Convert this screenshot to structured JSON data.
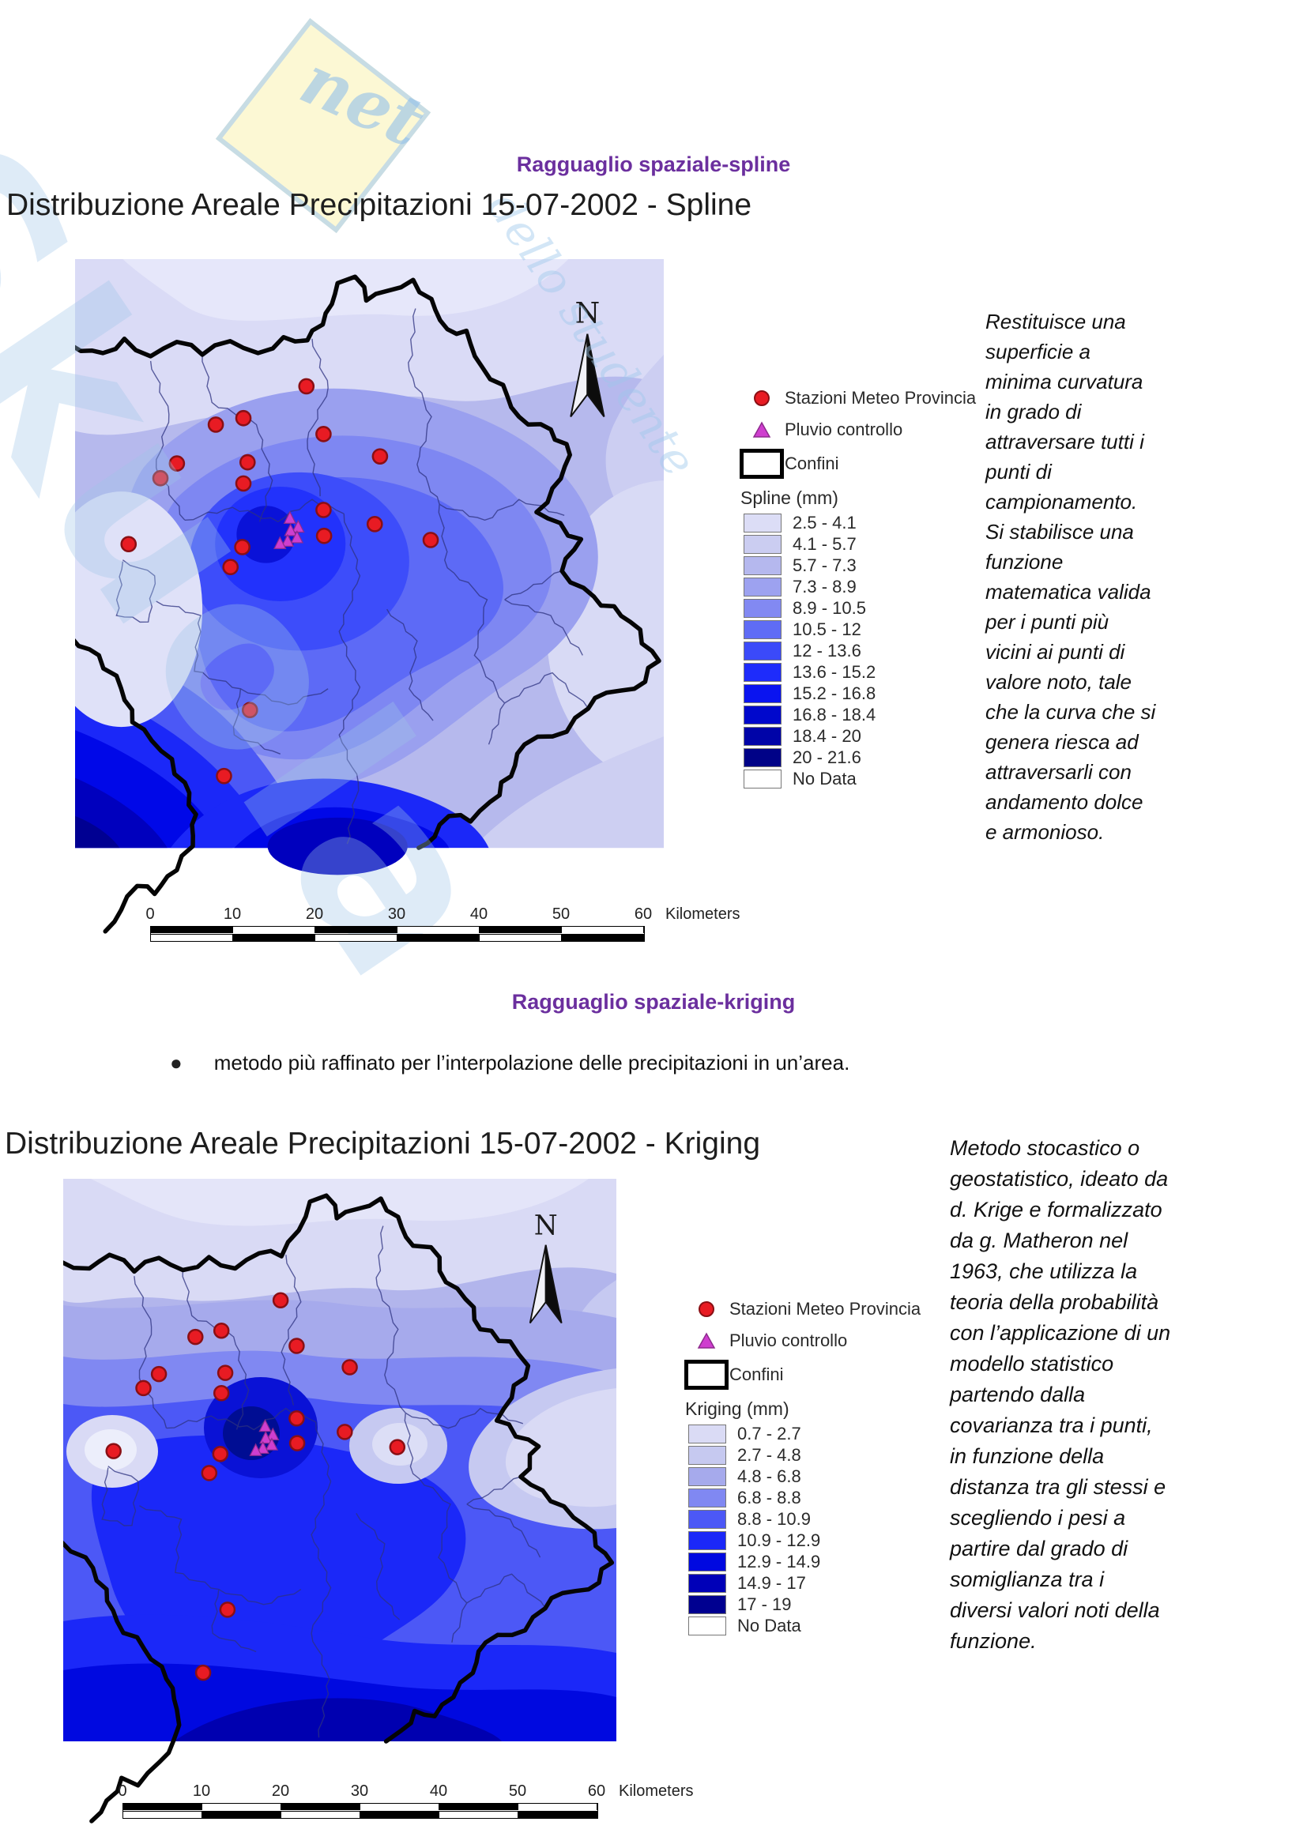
{
  "page": {
    "title_spline": "Ragguaglio spaziale-spline",
    "title_kriging": "Ragguaglio spaziale-kriging",
    "kriging_bullet": "metodo più raffinato per l’interpolazione delle precipitazioni in un’area.",
    "accent_purple": "#6b2f9e"
  },
  "watermark": {
    "brand": "Skuola",
    "net": "net",
    "tagline": "dello studente"
  },
  "colors": {
    "station_red": "#e81b23",
    "station_red_edge": "#8a0f14",
    "pluvio_magenta": "#cf3ecf",
    "pluvio_magenta_edge": "#8d2a8d"
  },
  "map_points": {
    "stations": [
      [
        39.3,
        21.6
      ],
      [
        28.6,
        27.0
      ],
      [
        23.9,
        28.1
      ],
      [
        42.2,
        29.7
      ],
      [
        51.8,
        33.5
      ],
      [
        17.3,
        34.7
      ],
      [
        29.3,
        34.5
      ],
      [
        14.5,
        37.2
      ],
      [
        28.6,
        38.1
      ],
      [
        42.2,
        42.6
      ],
      [
        50.9,
        45.0
      ],
      [
        42.3,
        47.0
      ],
      [
        60.4,
        47.7
      ],
      [
        9.1,
        48.4
      ],
      [
        28.4,
        48.9
      ],
      [
        26.4,
        52.3
      ],
      [
        29.7,
        76.6
      ],
      [
        25.3,
        87.8
      ]
    ],
    "pluvio": [
      [
        36.5,
        44.0
      ],
      [
        37.9,
        45.5
      ],
      [
        36.6,
        46.1
      ],
      [
        37.7,
        47.3
      ],
      [
        36.1,
        47.9
      ],
      [
        34.8,
        48.3
      ]
    ]
  },
  "spline_figure": {
    "map_title": "Distribuzione Areale Precipitazioni 15-07-2002  -  Spline",
    "north_label": "N",
    "legend": {
      "station_label": "Stazioni Meteo Provincia",
      "pluvio_label": "Pluvio controllo",
      "confini_label": "Confini",
      "ramp_title": "Spline (mm)",
      "classes": [
        {
          "label": "2.5 - 4.1",
          "color": "#dcddf6"
        },
        {
          "label": "4.1 - 5.7",
          "color": "#cbcdf1"
        },
        {
          "label": "5.7 - 7.3",
          "color": "#b5b8ee"
        },
        {
          "label": "7.3 - 8.9",
          "color": "#9da2f0"
        },
        {
          "label": "8.9 - 10.5",
          "color": "#8289f2"
        },
        {
          "label": "10.5 - 12",
          "color": "#5f6cf5"
        },
        {
          "label": "12 - 13.6",
          "color": "#3b4af9"
        },
        {
          "label": "13.6 - 15.2",
          "color": "#1e2cfb"
        },
        {
          "label": "15.2 - 16.8",
          "color": "#0a14f0"
        },
        {
          "label": "16.8 - 18.4",
          "color": "#0008cc"
        },
        {
          "label": "18.4 - 20",
          "color": "#0004a8"
        },
        {
          "label": "20 - 21.6",
          "color": "#000287"
        },
        {
          "label": "No Data",
          "color": "#ffffff"
        }
      ]
    },
    "scalebar": {
      "ticks": [
        "0",
        "10",
        "20",
        "30",
        "40",
        "50",
        "60"
      ],
      "unit": "Kilometers"
    },
    "description_lines": [
      "Restituisce una",
      "superficie a",
      "minima curvatura",
      "in grado di",
      "attraversare tutti i",
      "punti di",
      "campionamento.",
      "Si stabilisce una",
      "funzione",
      "matematica valida",
      "per i punti più",
      "vicini ai punti di",
      "valore noto, tale",
      "che la curva che si",
      "genera riesca ad",
      "attraversarli con",
      "andamento dolce",
      "e armonioso."
    ]
  },
  "kriging_figure": {
    "map_title": "Distribuzione Areale Precipitazioni 15-07-2002  -  Kriging",
    "north_label": "N",
    "legend": {
      "station_label": "Stazioni Meteo Provincia",
      "pluvio_label": "Pluvio controllo",
      "confini_label": "Confini",
      "ramp_title": "Kriging (mm)",
      "classes": [
        {
          "label": "0.7 - 2.7",
          "color": "#dadbf5"
        },
        {
          "label": "2.7 - 4.8",
          "color": "#c6c9f0"
        },
        {
          "label": "4.8 - 6.8",
          "color": "#a6aaec"
        },
        {
          "label": "6.8 - 8.8",
          "color": "#8088f2"
        },
        {
          "label": "8.8 - 10.9",
          "color": "#4c58f6"
        },
        {
          "label": "10.9 - 12.9",
          "color": "#1b28f8"
        },
        {
          "label": "12.9 - 14.9",
          "color": "#0009e0"
        },
        {
          "label": "14.9 - 17",
          "color": "#0000b8"
        },
        {
          "label": "17 - 19",
          "color": "#000090"
        },
        {
          "label": "No Data",
          "color": "#ffffff"
        }
      ]
    },
    "scalebar": {
      "ticks": [
        "0",
        "10",
        "20",
        "30",
        "40",
        "50",
        "60"
      ],
      "unit": "Kilometers"
    },
    "description_lines": [
      "Metodo stocastico o",
      "geostatistico, ideato da",
      "d. Krige e formalizzato",
      "da g. Matheron nel",
      "1963, che utilizza la",
      "teoria della probabilità",
      "con l’applicazione di un",
      "modello statistico",
      "partendo dalla",
      "covarianza tra i punti,",
      "in funzione della",
      "distanza tra gli stessi e",
      "scegliendo i pesi a",
      "partire dal grado di",
      "somiglianza tra i",
      "diversi valori noti della",
      "funzione."
    ]
  }
}
